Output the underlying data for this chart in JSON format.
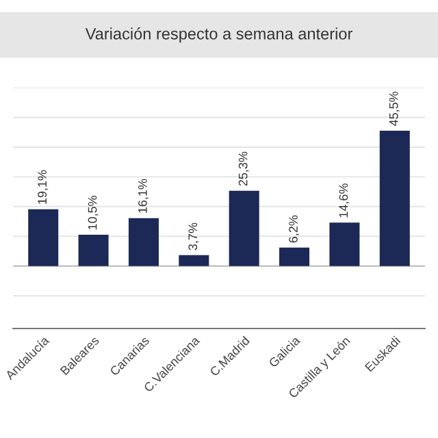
{
  "chart_data": {
    "type": "bar",
    "title": "Variación respecto a semana anterior",
    "categories": [
      "Andalucía",
      "Baleares",
      "Canarias",
      "C.Valenciana",
      "C.Madrid",
      "Galicia",
      "Castilla y León",
      "Euskadi"
    ],
    "values": [
      19.1,
      10.5,
      16.1,
      3.7,
      25.3,
      6.2,
      14.6,
      45.5
    ],
    "value_labels": [
      "19,1%",
      "10,5%",
      "16,1%",
      "3,7%",
      "25,3%",
      "6,2%",
      "14,6%",
      "45,5%"
    ],
    "color": "#1c2956",
    "ylim": [
      -21,
      60
    ],
    "yticks": [
      {
        "value": -10,
        "label": null
      },
      {
        "value": 0,
        "label": null
      },
      {
        "value": 10,
        "label": null
      },
      {
        "value": 20,
        "label": null
      },
      {
        "value": 30,
        "label": null
      },
      {
        "value": 40,
        "label": null
      },
      {
        "value": 50,
        "label": null
      },
      {
        "value": 60,
        "label": null
      }
    ],
    "tick_labels": "x",
    "grid": "y"
  }
}
